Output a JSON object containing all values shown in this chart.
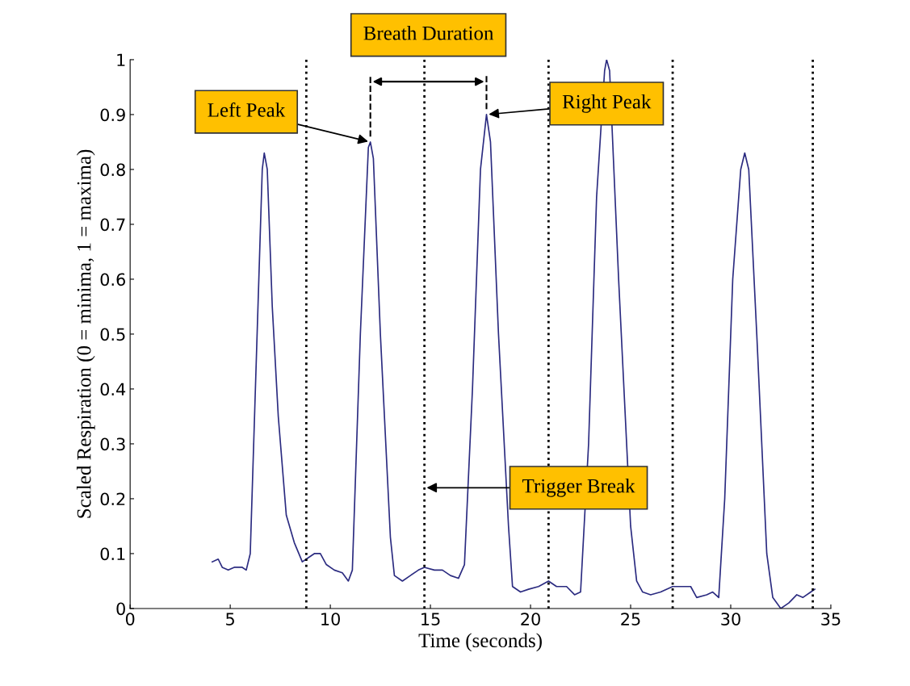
{
  "chart_data": {
    "type": "line",
    "xlabel": "Time (seconds)",
    "ylabel": "Scaled Respiration (0 = minima, 1 = maxima)",
    "xlim": [
      0,
      35
    ],
    "xticks": [
      0,
      5,
      10,
      15,
      20,
      25,
      30,
      35
    ],
    "ylim": [
      0,
      1
    ],
    "yticks": [
      0,
      0.1,
      0.2,
      0.3,
      0.4,
      0.5,
      0.6,
      0.7,
      0.8,
      0.9,
      1
    ],
    "grid": false,
    "marker": "none",
    "line_style": "solid",
    "series": [
      {
        "color": "#2b2b80",
        "x": [
          4.1,
          4.4,
          4.6,
          4.9,
          5.2,
          5.6,
          5.8,
          6.0,
          6.3,
          6.6,
          6.7,
          6.85,
          7.1,
          7.4,
          7.8,
          8.2,
          8.6,
          8.8,
          9.2,
          9.5,
          9.8,
          10.2,
          10.6,
          10.9,
          11.1,
          11.5,
          11.9,
          12.0,
          12.15,
          12.5,
          13.0,
          13.2,
          13.6,
          14.0,
          14.4,
          14.7,
          15.2,
          15.6,
          16.0,
          16.4,
          16.7,
          17.1,
          17.5,
          17.8,
          18.0,
          18.4,
          18.9,
          19.1,
          19.5,
          19.9,
          20.4,
          20.9,
          21.3,
          21.8,
          22.2,
          22.5,
          22.9,
          23.3,
          23.7,
          23.8,
          23.95,
          24.4,
          25.0,
          25.3,
          25.6,
          26.0,
          26.5,
          27.1,
          27.6,
          28.0,
          28.3,
          28.8,
          29.1,
          29.4,
          29.7,
          30.1,
          30.5,
          30.7,
          30.9,
          31.3,
          31.8,
          32.1,
          32.5,
          32.9,
          33.3,
          33.6,
          34.0,
          34.2
        ],
        "values": [
          0.085,
          0.09,
          0.075,
          0.07,
          0.075,
          0.075,
          0.07,
          0.1,
          0.45,
          0.8,
          0.83,
          0.8,
          0.55,
          0.35,
          0.17,
          0.12,
          0.085,
          0.09,
          0.1,
          0.1,
          0.08,
          0.07,
          0.065,
          0.05,
          0.07,
          0.5,
          0.84,
          0.85,
          0.82,
          0.5,
          0.13,
          0.06,
          0.05,
          0.06,
          0.07,
          0.075,
          0.07,
          0.07,
          0.06,
          0.055,
          0.08,
          0.4,
          0.8,
          0.9,
          0.85,
          0.5,
          0.15,
          0.04,
          0.03,
          0.035,
          0.04,
          0.05,
          0.04,
          0.04,
          0.025,
          0.03,
          0.3,
          0.75,
          0.98,
          1.0,
          0.98,
          0.6,
          0.15,
          0.05,
          0.03,
          0.025,
          0.03,
          0.04,
          0.04,
          0.04,
          0.02,
          0.025,
          0.03,
          0.02,
          0.2,
          0.6,
          0.8,
          0.83,
          0.8,
          0.5,
          0.1,
          0.02,
          0.0,
          0.01,
          0.025,
          0.02,
          0.03,
          0.035
        ]
      }
    ],
    "ref_lines": [
      {
        "axis": "x",
        "value": 8.8,
        "color": "#000000",
        "line_style": "dotted"
      },
      {
        "axis": "x",
        "value": 14.7,
        "color": "#000000",
        "line_style": "dotted"
      },
      {
        "axis": "x",
        "value": 20.9,
        "color": "#000000",
        "line_style": "dotted"
      },
      {
        "axis": "x",
        "value": 27.1,
        "color": "#000000",
        "line_style": "dotted"
      },
      {
        "axis": "x",
        "value": 34.1,
        "color": "#000000",
        "line_style": "dotted"
      }
    ],
    "annotations": [
      {
        "text": "Left Peak",
        "x": 12.0,
        "y": 0.85
      },
      {
        "text": "Right Peak",
        "x": 17.8,
        "y": 0.9
      },
      {
        "text": "Trigger Break",
        "x": 14.7,
        "y": 0.22
      },
      {
        "text": "Breath Duration",
        "x": 14.9,
        "y": 0.96
      }
    ]
  }
}
